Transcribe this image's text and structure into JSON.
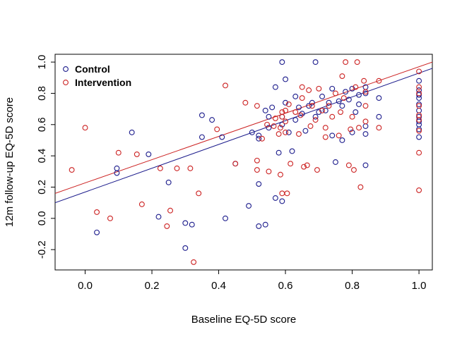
{
  "chart_data": {
    "type": "scatter",
    "xlabel": "Baseline EQ-5D score",
    "ylabel": "12m follow-up EQ-5D score",
    "xlim": [
      -0.09,
      1.04
    ],
    "ylim": [
      -0.33,
      1.05
    ],
    "x_ticks": [
      0.0,
      0.2,
      0.4,
      0.6,
      0.8,
      1.0
    ],
    "x_tick_labels": [
      "0.0",
      "0.2",
      "0.4",
      "0.6",
      "0.8",
      "1.0"
    ],
    "y_ticks": [
      -0.2,
      0.0,
      0.2,
      0.4,
      0.6,
      0.8,
      1.0
    ],
    "y_tick_labels": [
      "-0.2",
      "0.0",
      "0.2",
      "0.4",
      "0.6",
      "0.8",
      "1.0"
    ],
    "legend_position": "top-left",
    "grid": false,
    "series": [
      {
        "name": "Control",
        "color": "#1c1c8c",
        "fit_line": [
          [
            -0.09,
            0.1
          ],
          [
            1.04,
            0.96
          ]
        ],
        "points": [
          [
            0.035,
            -0.09
          ],
          [
            0.095,
            0.32
          ],
          [
            0.095,
            0.29
          ],
          [
            0.14,
            0.55
          ],
          [
            0.19,
            0.41
          ],
          [
            0.22,
            0.01
          ],
          [
            0.25,
            0.23
          ],
          [
            0.3,
            -0.03
          ],
          [
            0.3,
            -0.19
          ],
          [
            0.32,
            -0.04
          ],
          [
            0.35,
            0.66
          ],
          [
            0.35,
            0.52
          ],
          [
            0.38,
            0.63
          ],
          [
            0.41,
            0.52
          ],
          [
            0.42,
            0.0
          ],
          [
            0.45,
            0.35
          ],
          [
            0.49,
            0.08
          ],
          [
            0.5,
            0.55
          ],
          [
            0.52,
            0.51
          ],
          [
            0.52,
            0.53
          ],
          [
            0.52,
            0.22
          ],
          [
            0.52,
            -0.05
          ],
          [
            0.54,
            -0.04
          ],
          [
            0.54,
            0.69
          ],
          [
            0.55,
            0.65
          ],
          [
            0.55,
            0.58
          ],
          [
            0.56,
            0.71
          ],
          [
            0.57,
            0.84
          ],
          [
            0.57,
            0.13
          ],
          [
            0.58,
            0.42
          ],
          [
            0.59,
            0.11
          ],
          [
            0.59,
            0.6
          ],
          [
            0.59,
            0.65
          ],
          [
            0.59,
            1.0
          ],
          [
            0.6,
            0.89
          ],
          [
            0.6,
            0.74
          ],
          [
            0.61,
            0.55
          ],
          [
            0.62,
            0.43
          ],
          [
            0.63,
            0.63
          ],
          [
            0.63,
            0.78
          ],
          [
            0.64,
            0.71
          ],
          [
            0.65,
            0.67
          ],
          [
            0.66,
            0.56
          ],
          [
            0.67,
            0.72
          ],
          [
            0.68,
            0.74
          ],
          [
            0.69,
            0.65
          ],
          [
            0.69,
            1.0
          ],
          [
            0.7,
            0.68
          ],
          [
            0.71,
            0.78
          ],
          [
            0.72,
            0.69
          ],
          [
            0.73,
            0.74
          ],
          [
            0.74,
            0.83
          ],
          [
            0.74,
            0.53
          ],
          [
            0.75,
            0.36
          ],
          [
            0.76,
            0.75
          ],
          [
            0.77,
            0.72
          ],
          [
            0.77,
            0.5
          ],
          [
            0.78,
            0.81
          ],
          [
            0.79,
            0.76
          ],
          [
            0.8,
            0.83
          ],
          [
            0.8,
            0.55
          ],
          [
            0.81,
            0.68
          ],
          [
            0.82,
            0.79
          ],
          [
            0.82,
            0.73
          ],
          [
            0.84,
            0.84
          ],
          [
            0.84,
            0.8
          ],
          [
            0.84,
            0.59
          ],
          [
            0.84,
            0.54
          ],
          [
            0.84,
            0.34
          ],
          [
            0.88,
            0.77
          ],
          [
            0.88,
            0.65
          ],
          [
            1.0,
            0.88
          ],
          [
            1.0,
            0.82
          ],
          [
            1.0,
            0.79
          ],
          [
            1.0,
            0.77
          ],
          [
            1.0,
            0.73
          ],
          [
            1.0,
            0.69
          ],
          [
            1.0,
            0.65
          ],
          [
            1.0,
            0.62
          ],
          [
            1.0,
            0.6
          ],
          [
            1.0,
            0.57
          ],
          [
            1.0,
            0.52
          ]
        ]
      },
      {
        "name": "Intervention",
        "color": "#cc2222",
        "fit_line": [
          [
            -0.09,
            0.16
          ],
          [
            1.04,
            1.0
          ]
        ],
        "points": [
          [
            -0.04,
            0.31
          ],
          [
            0.0,
            0.58
          ],
          [
            0.035,
            0.04
          ],
          [
            0.075,
            0.0
          ],
          [
            0.1,
            0.42
          ],
          [
            0.155,
            0.41
          ],
          [
            0.17,
            0.09
          ],
          [
            0.225,
            0.32
          ],
          [
            0.245,
            -0.05
          ],
          [
            0.255,
            0.05
          ],
          [
            0.275,
            0.32
          ],
          [
            0.315,
            0.32
          ],
          [
            0.325,
            -0.28
          ],
          [
            0.34,
            0.16
          ],
          [
            0.395,
            0.57
          ],
          [
            0.42,
            0.85
          ],
          [
            0.45,
            0.35
          ],
          [
            0.48,
            0.74
          ],
          [
            0.515,
            0.72
          ],
          [
            0.515,
            0.37
          ],
          [
            0.515,
            0.31
          ],
          [
            0.53,
            0.51
          ],
          [
            0.545,
            0.6
          ],
          [
            0.55,
            0.3
          ],
          [
            0.565,
            0.59
          ],
          [
            0.57,
            0.64
          ],
          [
            0.58,
            0.54
          ],
          [
            0.585,
            0.58
          ],
          [
            0.585,
            0.28
          ],
          [
            0.59,
            0.68
          ],
          [
            0.59,
            0.65
          ],
          [
            0.59,
            0.16
          ],
          [
            0.6,
            0.69
          ],
          [
            0.6,
            0.62
          ],
          [
            0.6,
            0.55
          ],
          [
            0.605,
            0.16
          ],
          [
            0.61,
            0.73
          ],
          [
            0.615,
            0.35
          ],
          [
            0.63,
            0.68
          ],
          [
            0.64,
            0.54
          ],
          [
            0.645,
            0.66
          ],
          [
            0.65,
            0.84
          ],
          [
            0.65,
            0.77
          ],
          [
            0.655,
            0.33
          ],
          [
            0.665,
            0.34
          ],
          [
            0.67,
            0.82
          ],
          [
            0.675,
            0.59
          ],
          [
            0.68,
            0.72
          ],
          [
            0.69,
            0.63
          ],
          [
            0.695,
            0.31
          ],
          [
            0.7,
            0.83
          ],
          [
            0.71,
            0.69
          ],
          [
            0.72,
            0.58
          ],
          [
            0.72,
            0.52
          ],
          [
            0.73,
            0.72
          ],
          [
            0.74,
            0.65
          ],
          [
            0.75,
            0.8
          ],
          [
            0.76,
            0.53
          ],
          [
            0.765,
            0.68
          ],
          [
            0.77,
            0.91
          ],
          [
            0.775,
            0.77
          ],
          [
            0.78,
            1.0
          ],
          [
            0.79,
            0.34
          ],
          [
            0.795,
            0.57
          ],
          [
            0.8,
            0.65
          ],
          [
            0.805,
            0.31
          ],
          [
            0.81,
            0.84
          ],
          [
            0.815,
            1.0
          ],
          [
            0.82,
            0.58
          ],
          [
            0.825,
            0.2
          ],
          [
            0.835,
            0.88
          ],
          [
            0.84,
            0.81
          ],
          [
            0.84,
            0.72
          ],
          [
            0.84,
            0.62
          ],
          [
            0.88,
            0.88
          ],
          [
            0.88,
            0.58
          ],
          [
            1.0,
            0.94
          ],
          [
            1.0,
            0.84
          ],
          [
            1.0,
            0.8
          ],
          [
            1.0,
            0.72
          ],
          [
            1.0,
            0.66
          ],
          [
            1.0,
            0.63
          ],
          [
            1.0,
            0.56
          ],
          [
            1.0,
            0.42
          ],
          [
            1.0,
            0.18
          ]
        ]
      }
    ]
  }
}
